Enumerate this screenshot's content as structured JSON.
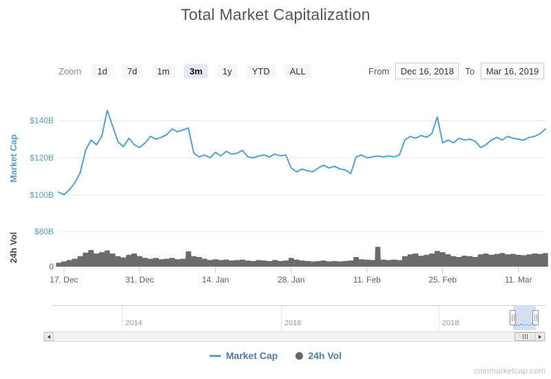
{
  "page": {
    "title": "Total Market Capitalization",
    "attribution": "coinmarketcap.com"
  },
  "toolbar": {
    "zoom_label": "Zoom",
    "buttons": [
      {
        "label": "1d",
        "selected": false
      },
      {
        "label": "7d",
        "selected": false
      },
      {
        "label": "1m",
        "selected": false
      },
      {
        "label": "3m",
        "selected": true
      },
      {
        "label": "1y",
        "selected": false
      },
      {
        "label": "YTD",
        "selected": false
      },
      {
        "label": "ALL",
        "selected": false
      }
    ],
    "from_label": "From",
    "from_value": "Dec 16, 2018",
    "to_label": "To",
    "to_value": "Mar 16, 2019"
  },
  "chart_data": {
    "type": "line",
    "title": "Total Market Capitalization",
    "unit": "USD billions",
    "x_dates": [
      "2018-12-16",
      "2018-12-17",
      "2018-12-18",
      "2018-12-19",
      "2018-12-20",
      "2018-12-21",
      "2018-12-22",
      "2018-12-23",
      "2018-12-24",
      "2018-12-25",
      "2018-12-26",
      "2018-12-27",
      "2018-12-28",
      "2018-12-29",
      "2018-12-30",
      "2018-12-31",
      "2019-01-01",
      "2019-01-02",
      "2019-01-03",
      "2019-01-04",
      "2019-01-05",
      "2019-01-06",
      "2019-01-07",
      "2019-01-08",
      "2019-01-09",
      "2019-01-10",
      "2019-01-11",
      "2019-01-12",
      "2019-01-13",
      "2019-01-14",
      "2019-01-15",
      "2019-01-16",
      "2019-01-17",
      "2019-01-18",
      "2019-01-19",
      "2019-01-20",
      "2019-01-21",
      "2019-01-22",
      "2019-01-23",
      "2019-01-24",
      "2019-01-25",
      "2019-01-26",
      "2019-01-27",
      "2019-01-28",
      "2019-01-29",
      "2019-01-30",
      "2019-01-31",
      "2019-02-01",
      "2019-02-02",
      "2019-02-03",
      "2019-02-04",
      "2019-02-05",
      "2019-02-06",
      "2019-02-07",
      "2019-02-08",
      "2019-02-09",
      "2019-02-10",
      "2019-02-11",
      "2019-02-12",
      "2019-02-13",
      "2019-02-14",
      "2019-02-15",
      "2019-02-16",
      "2019-02-17",
      "2019-02-18",
      "2019-02-19",
      "2019-02-20",
      "2019-02-21",
      "2019-02-22",
      "2019-02-23",
      "2019-02-24",
      "2019-02-25",
      "2019-02-26",
      "2019-02-27",
      "2019-02-28",
      "2019-03-01",
      "2019-03-02",
      "2019-03-03",
      "2019-03-04",
      "2019-03-05",
      "2019-03-06",
      "2019-03-07",
      "2019-03-08",
      "2019-03-09",
      "2019-03-10",
      "2019-03-11",
      "2019-03-12",
      "2019-03-13",
      "2019-03-14",
      "2019-03-15",
      "2019-03-16"
    ],
    "x_ticks": [
      {
        "index": 1,
        "label": "17. Dec"
      },
      {
        "index": 15,
        "label": "31. Dec"
      },
      {
        "index": 29,
        "label": "14. Jan"
      },
      {
        "index": 43,
        "label": "28. Jan"
      },
      {
        "index": 57,
        "label": "11. Feb"
      },
      {
        "index": 71,
        "label": "25. Feb"
      },
      {
        "index": 85,
        "label": "11. Mar"
      }
    ],
    "y_axis_main": {
      "title": "Market Cap",
      "label_color": "#55a0d0",
      "range_billions": [
        97,
        148
      ],
      "ticks": [
        {
          "label": "$140B",
          "value": 140,
          "color": "#55a0d0"
        },
        {
          "label": "$120B",
          "value": 120,
          "color": "#55a0d0"
        },
        {
          "label": "$100B",
          "value": 100,
          "color": "#55a0d0"
        }
      ]
    },
    "y_axis_vol": {
      "title": "24h Vol",
      "range_billions": [
        0,
        80
      ],
      "ticks": [
        {
          "label": "$80B",
          "value": 80,
          "color": "#55a0d0"
        },
        {
          "label": "0",
          "value": 0,
          "color": "#666666"
        }
      ]
    },
    "series": [
      {
        "name": "Market Cap",
        "type": "line",
        "color": "#4aa3dc",
        "values_billions": [
          101.5,
          100.2,
          102.8,
          106.5,
          112.0,
          124.0,
          129.5,
          127.0,
          131.5,
          145.5,
          137.0,
          128.5,
          126.0,
          130.5,
          127.0,
          125.5,
          128.0,
          131.5,
          130.0,
          131.0,
          132.5,
          135.5,
          134.0,
          135.0,
          136.0,
          122.5,
          120.5,
          121.5,
          120.0,
          123.0,
          121.0,
          123.5,
          122.0,
          122.5,
          124.0,
          120.5,
          120.0,
          121.0,
          121.5,
          120.5,
          122.0,
          121.0,
          121.5,
          114.5,
          112.5,
          114.0,
          113.0,
          112.5,
          114.5,
          116.0,
          114.5,
          115.5,
          114.0,
          113.5,
          111.5,
          120.5,
          121.5,
          120.0,
          120.5,
          121.0,
          120.5,
          121.0,
          120.5,
          121.5,
          129.5,
          131.5,
          130.5,
          132.0,
          131.0,
          133.0,
          142.0,
          128.0,
          129.5,
          128.0,
          130.5,
          129.5,
          130.0,
          129.0,
          125.5,
          127.0,
          129.5,
          131.0,
          129.5,
          131.5,
          130.5,
          130.0,
          129.5,
          131.0,
          131.5,
          133.0,
          135.5
        ]
      },
      {
        "name": "24h Vol",
        "type": "column",
        "color": "#6b6b6b",
        "values_billions": [
          9,
          12,
          15,
          18,
          24,
          32,
          38,
          30,
          33,
          37,
          30,
          24,
          21,
          27,
          30,
          24,
          20,
          18,
          20,
          17,
          18,
          20,
          17,
          18,
          35,
          24,
          22,
          18,
          15,
          17,
          15,
          16,
          14,
          15,
          16,
          14,
          13,
          15,
          14,
          13,
          15,
          13,
          14,
          20,
          16,
          14,
          13,
          12,
          13,
          14,
          12,
          13,
          12,
          13,
          14,
          22,
          17,
          16,
          15,
          45,
          16,
          15,
          16,
          15,
          24,
          28,
          30,
          25,
          27,
          30,
          36,
          33,
          28,
          24,
          22,
          25,
          24,
          22,
          28,
          30,
          27,
          29,
          31,
          28,
          29,
          27,
          26,
          28,
          30,
          29,
          31
        ]
      }
    ],
    "navigator": {
      "year_labels": [
        "2014",
        "2016",
        "2018"
      ],
      "selected_from": "Dec 16, 2018",
      "selected_to": "Mar 16, 2019"
    },
    "legend": [
      {
        "label": "Market Cap",
        "symbol": "line"
      },
      {
        "label": "24h Vol",
        "symbol": "circle"
      }
    ],
    "legend_text_color": "#4a7da9",
    "grid": true,
    "legend_position": "bottom"
  }
}
